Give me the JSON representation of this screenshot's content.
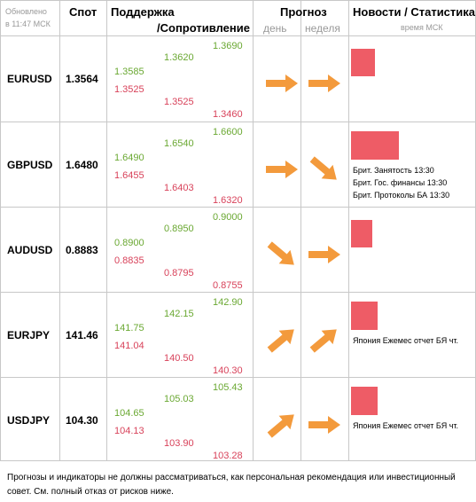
{
  "header": {
    "updated_line1": "Обновлено",
    "updated_line2": "в 11:47 МСК",
    "spot": "Спот",
    "support": "Поддержка",
    "resistance": "/Сопротивление",
    "forecast": "Прогноз",
    "day": "день",
    "week": "неделя",
    "news": "Новости / Статистика",
    "msk_time": "время МСК"
  },
  "rows": [
    {
      "pair": "EURUSD",
      "spot": "1.3564",
      "s_green": "1.3585",
      "s_red": "1.3525",
      "m_green": "1.3620",
      "m_red": "1.3525",
      "r_green": "1.3690",
      "r_red": "1.3460",
      "day_arrow": "arrow-right-icon",
      "week_arrow": "arrow-right-icon",
      "news_level": 0.5,
      "news": []
    },
    {
      "pair": "GBPUSD",
      "spot": "1.6480",
      "s_green": "1.6490",
      "s_red": "1.6455",
      "m_green": "1.6540",
      "m_red": "1.6403",
      "r_green": "1.6600",
      "r_red": "1.6320",
      "day_arrow": "arrow-right-icon",
      "week_arrow": "arrow-down-right-icon",
      "news_level": 1.0,
      "news": [
        "Брит. Занятость 13:30",
        "Брит. Гос. финансы 13:30",
        "Брит. Протоколы БА 13:30"
      ]
    },
    {
      "pair": "AUDUSD",
      "spot": "0.8883",
      "s_green": "0.8900",
      "s_red": "0.8835",
      "m_green": "0.8950",
      "m_red": "0.8795",
      "r_green": "0.9000",
      "r_red": "0.8755",
      "day_arrow": "arrow-down-right-icon",
      "week_arrow": "arrow-right-icon",
      "news_level": 0.45,
      "news": []
    },
    {
      "pair": "EURJPY",
      "spot": "141.46",
      "s_green": "141.75",
      "s_red": "141.04",
      "m_green": "142.15",
      "m_red": "140.50",
      "r_green": "142.90",
      "r_red": "140.30",
      "day_arrow": "arrow-up-right-icon",
      "week_arrow": "arrow-up-right-icon",
      "news_level": 0.55,
      "news": [
        "Япония Ежемес отчет БЯ чт."
      ]
    },
    {
      "pair": "USDJPY",
      "spot": "104.30",
      "s_green": "104.65",
      "s_red": "104.13",
      "m_green": "105.03",
      "m_red": "103.90",
      "r_green": "105.43",
      "r_red": "103.28",
      "day_arrow": "arrow-up-right-icon",
      "week_arrow": "arrow-right-icon",
      "news_level": 0.55,
      "news": [
        "Япония Ежемес отчет БЯ чт."
      ]
    }
  ],
  "colors": {
    "green": "#6aa832",
    "red": "#d8425a",
    "arrow": "#f39a3c",
    "bar": "#ee5c66"
  },
  "disclaimer": "Прогнозы и индикаторы не должны рассматриваться, как персональная рекомендация или инвестиционный совет. См. полный отказ от рисков ниже."
}
